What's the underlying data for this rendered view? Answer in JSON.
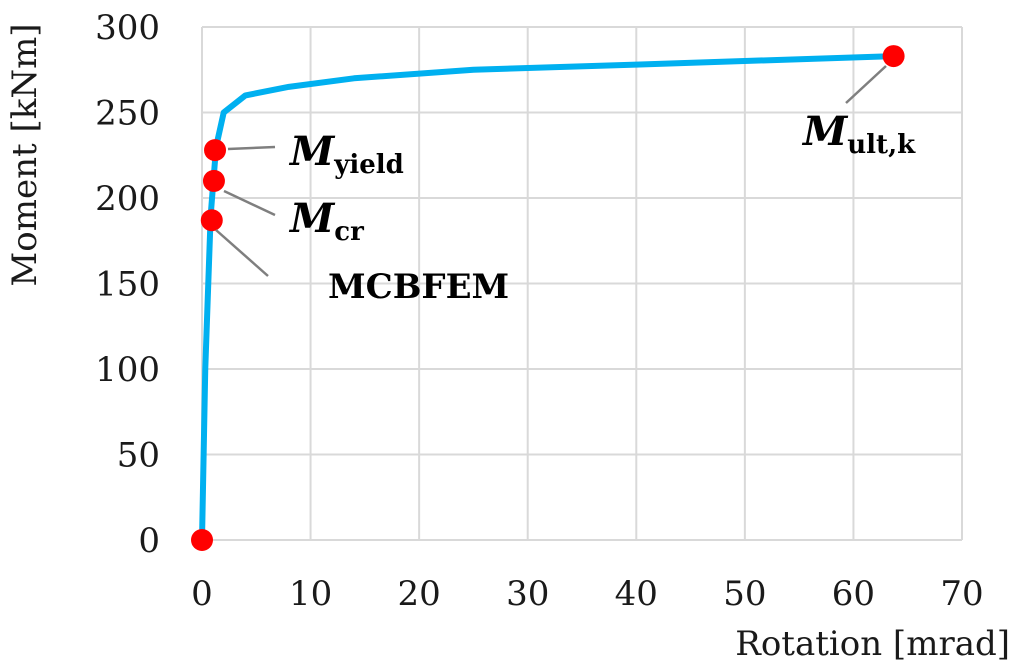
{
  "chart_data": {
    "type": "scatter",
    "xlabel": "Rotation [mrad]",
    "ylabel": "Moment [kNm]",
    "xlim": [
      0,
      70
    ],
    "ylim": [
      0,
      300
    ],
    "xticks": [
      "0",
      "10",
      "20",
      "30",
      "40",
      "50",
      "60",
      "70"
    ],
    "yticks": [
      "0",
      "50",
      "100",
      "150",
      "200",
      "250",
      "300"
    ],
    "grid": true,
    "line_color": "#00b0f0",
    "marker_color": "#ff0000",
    "series": [
      {
        "style": "line",
        "x": [
          0,
          0.3,
          0.8,
          1.3,
          2.0,
          4.0,
          8.0,
          14.0,
          25.0,
          40.0,
          63.7
        ],
        "y": [
          0,
          100,
          190,
          230,
          250,
          260,
          265,
          270,
          275,
          278,
          283
        ]
      },
      {
        "style": "markers",
        "x": [
          0,
          0.9,
          1.1,
          1.2,
          63.7
        ],
        "y": [
          0,
          187,
          210,
          228,
          283
        ]
      }
    ],
    "annotations": [
      {
        "main": "M",
        "sub": "yield",
        "x": 1.2,
        "y": 228
      },
      {
        "main": "M",
        "sub": "cr",
        "x": 1.1,
        "y": 210
      },
      {
        "main": "MCBFEM",
        "sub": "",
        "x": 0.9,
        "y": 187
      },
      {
        "main": "M",
        "sub": "ult,k",
        "x": 63.7,
        "y": 283
      }
    ]
  }
}
